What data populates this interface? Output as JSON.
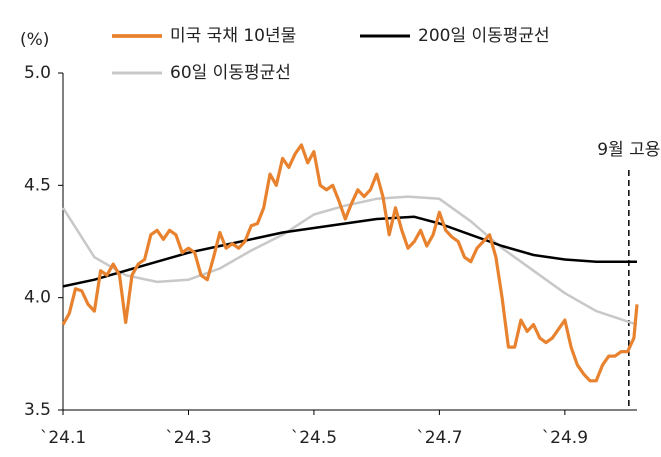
{
  "chart_data": {
    "type": "line",
    "y_unit": "(%)",
    "xlim": [
      1,
      10.15
    ],
    "xticks": [
      {
        "value": 1,
        "label": "`24.1"
      },
      {
        "value": 3,
        "label": "`24.3"
      },
      {
        "value": 5,
        "label": "`24.5"
      },
      {
        "value": 7,
        "label": "`24.7"
      },
      {
        "value": 9,
        "label": "`24.9"
      }
    ],
    "ylim": [
      3.5,
      5.0
    ],
    "yticks": [
      3.5,
      {
        "value": 4,
        "label": "4.0"
      },
      4.5,
      {
        "value": 5,
        "label": "5.0"
      }
    ],
    "annotation": {
      "text": "9월 고용",
      "x": 10.02
    },
    "series": [
      {
        "name": "미국 국채 10년물",
        "color": "#e8822e",
        "width": 3.2,
        "x": [
          1.0,
          1.1,
          1.2,
          1.3,
          1.4,
          1.5,
          1.6,
          1.7,
          1.8,
          1.9,
          2.0,
          2.1,
          2.2,
          2.3,
          2.4,
          2.5,
          2.6,
          2.7,
          2.8,
          2.9,
          3.0,
          3.1,
          3.2,
          3.3,
          3.4,
          3.5,
          3.6,
          3.7,
          3.8,
          3.9,
          4.0,
          4.1,
          4.2,
          4.3,
          4.4,
          4.5,
          4.6,
          4.7,
          4.8,
          4.9,
          5.0,
          5.1,
          5.2,
          5.3,
          5.4,
          5.5,
          5.6,
          5.7,
          5.8,
          5.9,
          6.0,
          6.1,
          6.2,
          6.3,
          6.4,
          6.5,
          6.6,
          6.7,
          6.8,
          6.9,
          7.0,
          7.1,
          7.2,
          7.3,
          7.4,
          7.5,
          7.6,
          7.7,
          7.8,
          7.9,
          8.0,
          8.1,
          8.2,
          8.3,
          8.4,
          8.5,
          8.6,
          8.7,
          8.8,
          8.9,
          9.0,
          9.1,
          9.2,
          9.3,
          9.4,
          9.5,
          9.6,
          9.7,
          9.8,
          9.9,
          10.0,
          10.1,
          10.15
        ],
        "values": [
          3.88,
          3.93,
          4.04,
          4.03,
          3.97,
          3.94,
          4.12,
          4.1,
          4.15,
          4.1,
          3.89,
          4.1,
          4.15,
          4.17,
          4.28,
          4.3,
          4.26,
          4.3,
          4.28,
          4.2,
          4.22,
          4.2,
          4.1,
          4.08,
          4.18,
          4.29,
          4.22,
          4.24,
          4.22,
          4.25,
          4.32,
          4.33,
          4.4,
          4.55,
          4.5,
          4.62,
          4.58,
          4.64,
          4.68,
          4.6,
          4.65,
          4.5,
          4.48,
          4.5,
          4.43,
          4.35,
          4.42,
          4.48,
          4.45,
          4.48,
          4.55,
          4.45,
          4.28,
          4.4,
          4.3,
          4.22,
          4.25,
          4.3,
          4.23,
          4.28,
          4.38,
          4.3,
          4.27,
          4.25,
          4.18,
          4.16,
          4.22,
          4.25,
          4.28,
          4.18,
          4.0,
          3.78,
          3.78,
          3.9,
          3.85,
          3.88,
          3.82,
          3.8,
          3.82,
          3.86,
          3.9,
          3.78,
          3.7,
          3.66,
          3.63,
          3.63,
          3.7,
          3.74,
          3.74,
          3.76,
          3.76,
          3.82,
          3.97
        ]
      },
      {
        "name": "200일 이동평균선",
        "color": "#000000",
        "width": 2.5,
        "x": [
          1.0,
          1.5,
          2.0,
          2.5,
          3.0,
          3.5,
          4.0,
          4.5,
          5.0,
          5.5,
          6.0,
          6.6,
          7.0,
          7.5,
          8.0,
          8.5,
          9.0,
          9.5,
          10.15
        ],
        "values": [
          4.05,
          4.08,
          4.12,
          4.16,
          4.2,
          4.23,
          4.26,
          4.29,
          4.31,
          4.33,
          4.35,
          4.36,
          4.33,
          4.28,
          4.23,
          4.19,
          4.17,
          4.16,
          4.16
        ]
      },
      {
        "name": "60일 이동평균선",
        "color": "#c8c8c8",
        "width": 2.5,
        "x": [
          1.0,
          1.5,
          2.0,
          2.5,
          3.0,
          3.5,
          4.0,
          4.5,
          5.0,
          5.5,
          6.0,
          6.5,
          7.0,
          7.5,
          8.0,
          8.5,
          9.0,
          9.5,
          10.15
        ],
        "values": [
          4.4,
          4.18,
          4.1,
          4.07,
          4.08,
          4.13,
          4.21,
          4.28,
          4.37,
          4.41,
          4.44,
          4.45,
          4.44,
          4.34,
          4.22,
          4.12,
          4.02,
          3.94,
          3.88
        ]
      }
    ]
  }
}
